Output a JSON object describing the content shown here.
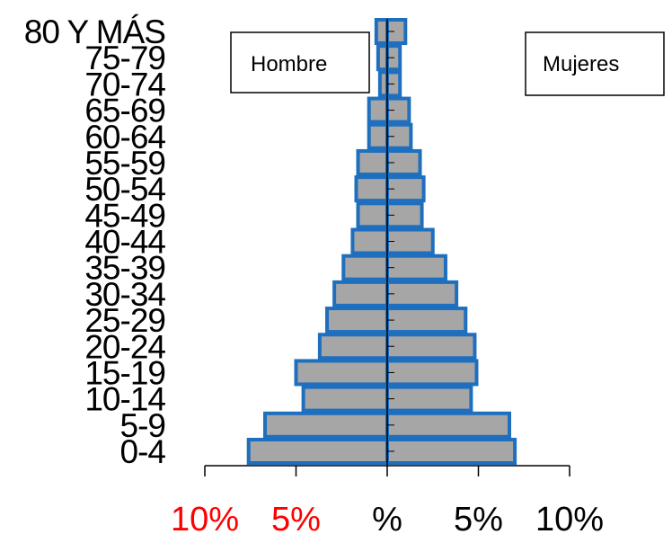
{
  "chart_data": {
    "type": "bar",
    "orientation": "horizontal",
    "layout": "population-pyramid",
    "categories": [
      "0-4",
      "5-9",
      "10-14",
      "15-19",
      "20-24",
      "25-29",
      "30-34",
      "35-39",
      "40-44",
      "45-49",
      "50-54",
      "55-59",
      "60-64",
      "65-69",
      "70-74",
      "75-79",
      "80 Y MÁS"
    ],
    "series": [
      {
        "name": "Hombre",
        "side": "left",
        "values": [
          7.6,
          6.7,
          4.6,
          5.0,
          3.7,
          3.3,
          2.9,
          2.4,
          1.9,
          1.6,
          1.7,
          1.6,
          1.0,
          1.0,
          0.4,
          0.5,
          0.6
        ]
      },
      {
        "name": "Mujeres",
        "side": "right",
        "values": [
          7.0,
          6.7,
          4.6,
          4.9,
          4.8,
          4.3,
          3.8,
          3.2,
          2.5,
          1.9,
          2.0,
          1.8,
          1.3,
          1.2,
          0.7,
          0.7,
          1.0
        ]
      }
    ],
    "xlim": [
      -10,
      10
    ],
    "xticks": [
      -10,
      -5,
      0,
      5,
      10
    ],
    "xtick_labels": [
      "10%",
      "5%",
      "%",
      "5%",
      "10%"
    ],
    "xtick_colors": [
      "#ff0000",
      "#ff0000",
      "#000000",
      "#000000",
      "#000000"
    ],
    "bar_fill": "#a6a6a6",
    "bar_edge": "#1f6fbf",
    "axis_color": "#000000"
  },
  "legend": {
    "left_label": "Hombre",
    "right_label": "Mujeres"
  }
}
